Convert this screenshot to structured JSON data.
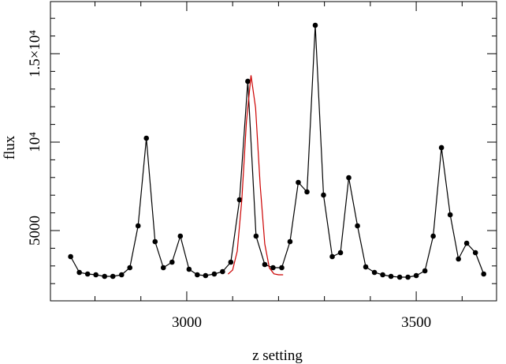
{
  "chart_data": {
    "type": "line",
    "x_label": "z setting",
    "y_label": "flux",
    "xlim": [
      2703,
      3675
    ],
    "ylim": [
      1027,
      17946
    ],
    "xticks": [
      3000,
      3500
    ],
    "xminorticks": [
      2800,
      2900,
      3100,
      3200,
      3300,
      3400,
      3600
    ],
    "yticks": [
      5000,
      {
        "value": 10000,
        "label": "10⁴"
      },
      {
        "value": 15000,
        "label": "1.5×10⁴"
      }
    ],
    "yminorticks": [
      2000,
      3000,
      4000,
      6000,
      7000,
      8000,
      9000,
      11000,
      12000,
      13000,
      14000,
      16000,
      17000
    ],
    "series": [
      {
        "color": "#000000",
        "markers": true,
        "x": [
          2747,
          2766,
          2784,
          2802,
          2821,
          2839,
          2858,
          2876,
          2894,
          2912,
          2931,
          2949,
          2968,
          2986,
          3005,
          3023,
          3041,
          3060,
          3078,
          3096,
          3115,
          3133,
          3151,
          3170,
          3188,
          3207,
          3225,
          3243,
          3262,
          3280,
          3298,
          3317,
          3335,
          3353,
          3372,
          3390,
          3409,
          3427,
          3445,
          3464,
          3482,
          3500,
          3519,
          3537,
          3555,
          3574,
          3592,
          3610,
          3629,
          3647
        ],
        "values": [
          3527,
          2634,
          2545,
          2500,
          2411,
          2411,
          2500,
          2902,
          5268,
          10223,
          4375,
          2902,
          3214,
          4688,
          2813,
          2500,
          2455,
          2545,
          2679,
          3214,
          6741,
          13438,
          4688,
          3080,
          2902,
          2902,
          4375,
          7723,
          7188,
          16607,
          7009,
          3527,
          3750,
          7991,
          5268,
          2946,
          2634,
          2500,
          2411,
          2366,
          2366,
          2455,
          2723,
          4688,
          9688,
          5893,
          3393,
          4286,
          3750,
          2545
        ]
      },
      {
        "color": "#cc0000",
        "markers": false,
        "x": [
          3090,
          3100,
          3110,
          3120,
          3130,
          3140,
          3150,
          3160,
          3170,
          3180,
          3190,
          3200,
          3210
        ],
        "values": [
          2535,
          2771,
          3834,
          6738,
          11133,
          13777,
          11936,
          7565,
          4240,
          2884,
          2554,
          2500,
          2500
        ]
      }
    ]
  }
}
